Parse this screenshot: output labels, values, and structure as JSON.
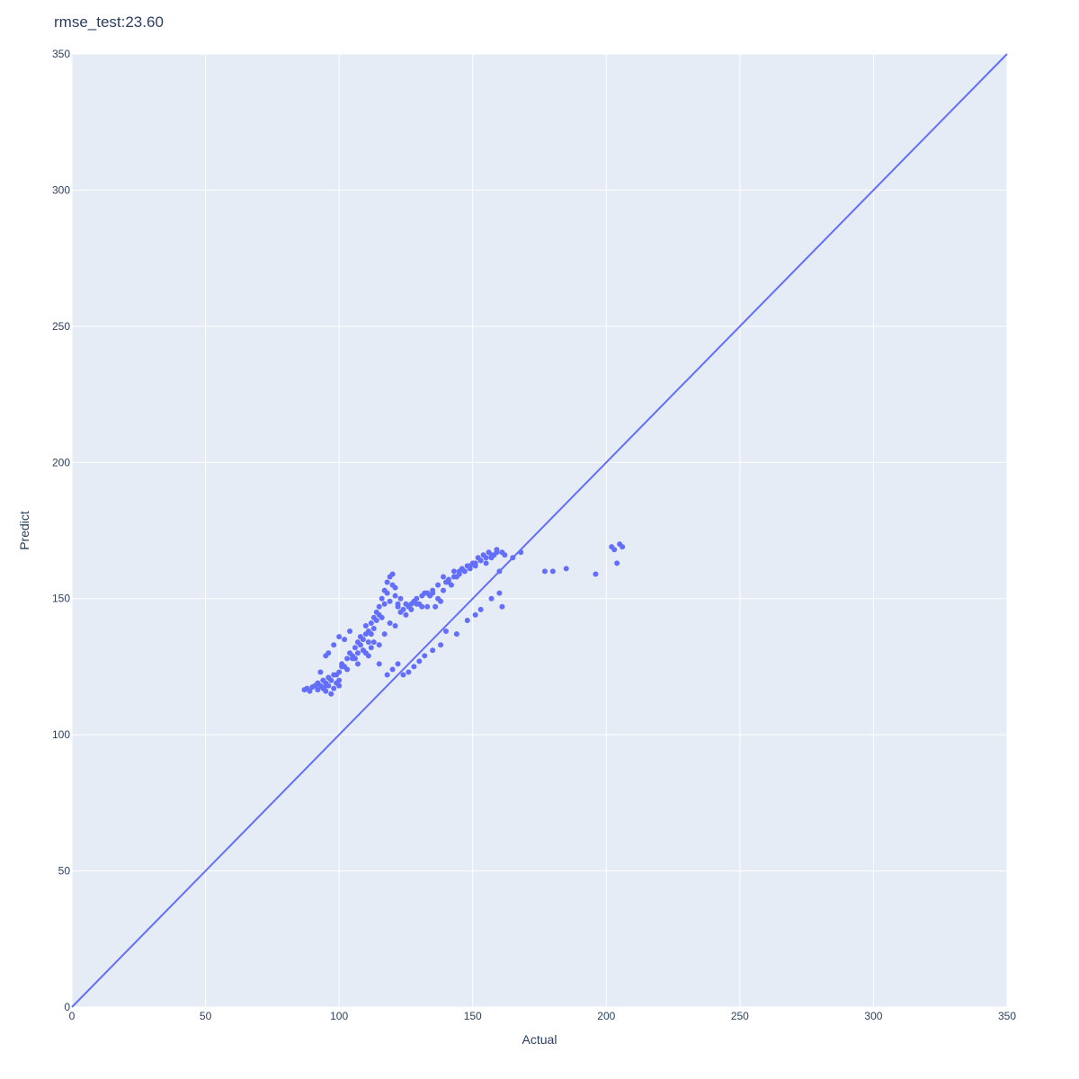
{
  "colors": {
    "background": "#ffffff",
    "plot_background": "#e5ecf6",
    "grid": "#ffffff",
    "marker": "#636efa",
    "line": "#636efa",
    "text": "#2a3f5f"
  },
  "chart_data": {
    "type": "scatter",
    "title": "rmse_test:23.60",
    "xlabel": "Actual",
    "ylabel": "Predict",
    "xlim": [
      0,
      350
    ],
    "ylim": [
      0,
      350
    ],
    "xticks": [
      0,
      50,
      100,
      150,
      200,
      250,
      300,
      350
    ],
    "yticks": [
      0,
      50,
      100,
      150,
      200,
      250,
      300,
      350
    ],
    "grid": true,
    "legend": "none",
    "series": [
      {
        "mode": "markers",
        "x": [
          87,
          88,
          89,
          90,
          91,
          92,
          92,
          93,
          94,
          94,
          95,
          95,
          96,
          96,
          97,
          97,
          98,
          98,
          99,
          100,
          100,
          101,
          102,
          103,
          104,
          105,
          106,
          106,
          107,
          107,
          108,
          108,
          109,
          109,
          110,
          110,
          111,
          111,
          112,
          112,
          113,
          113,
          114,
          114,
          115,
          115,
          116,
          116,
          117,
          117,
          118,
          118,
          119,
          119,
          120,
          120,
          121,
          121,
          122,
          122,
          123,
          124,
          125,
          126,
          127,
          128,
          129,
          130,
          131,
          132,
          133,
          134,
          135,
          136,
          137,
          138,
          139,
          140,
          141,
          142,
          143,
          144,
          145,
          146,
          147,
          148,
          149,
          150,
          151,
          152,
          153,
          154,
          155,
          156,
          157,
          158,
          159,
          160,
          161,
          162,
          165,
          168,
          177,
          180,
          185,
          196,
          202,
          203,
          204,
          205,
          206,
          93,
          95,
          96,
          98,
          100,
          102,
          104,
          110,
          112,
          115,
          118,
          120,
          122,
          124,
          126,
          128,
          130,
          132,
          135,
          138,
          140,
          144,
          148,
          151,
          153,
          157,
          160,
          161,
          95,
          97,
          99,
          100,
          101,
          103,
          105,
          107,
          109,
          111,
          113,
          115,
          117,
          119,
          121,
          123,
          125,
          127,
          129,
          131,
          133,
          135,
          137,
          139,
          141,
          143,
          145,
          147,
          149,
          151,
          153,
          155,
          157,
          159
        ],
        "y": [
          116.5,
          117,
          116,
          117.5,
          118,
          116.5,
          119,
          118,
          117,
          120,
          119,
          116,
          121,
          118,
          120,
          115,
          122,
          117,
          119,
          123,
          118,
          126,
          125,
          128,
          130,
          129,
          132,
          128,
          134,
          130,
          136,
          133,
          135,
          131,
          137,
          140,
          138,
          134,
          141,
          137,
          143,
          139,
          142,
          145,
          144,
          147,
          143,
          150,
          148,
          153,
          152,
          156,
          149,
          158,
          155,
          159,
          151,
          154,
          148,
          147,
          150,
          146,
          148,
          147,
          146,
          149,
          150,
          148,
          147,
          152,
          147,
          151,
          152,
          147,
          150,
          149,
          153,
          156,
          157,
          155,
          160,
          158,
          159,
          161,
          160,
          162,
          161,
          163,
          162,
          165,
          164,
          166,
          163,
          167,
          165,
          166,
          168,
          160,
          167,
          166,
          165,
          167,
          160,
          160,
          161,
          159,
          169,
          168,
          163,
          170,
          169,
          123,
          129,
          130,
          133,
          136,
          135,
          138,
          130,
          132,
          126,
          122,
          124,
          126,
          122,
          123,
          125,
          127,
          129,
          131,
          133,
          138,
          137,
          142,
          144,
          146,
          150,
          152,
          147,
          118,
          120,
          122,
          120,
          125,
          124,
          128,
          126,
          131,
          129,
          134,
          133,
          137,
          141,
          140,
          145,
          144,
          148,
          148,
          151,
          152,
          153,
          155,
          158,
          156,
          158,
          160,
          160,
          162,
          163,
          164,
          165,
          166,
          167
        ]
      },
      {
        "mode": "lines",
        "x": [
          0,
          350
        ],
        "y": [
          0,
          350
        ]
      }
    ]
  }
}
